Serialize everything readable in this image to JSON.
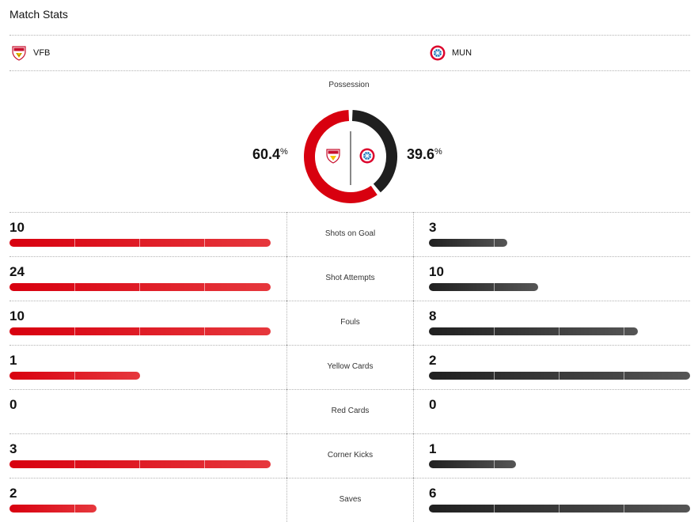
{
  "title": "Match Stats",
  "home": {
    "abbr": "VFB",
    "possession": "60.4",
    "color": "#d8000f"
  },
  "away": {
    "abbr": "MUN",
    "possession": "39.6",
    "color": "#1f1f1f"
  },
  "possession_label": "Possession",
  "percent_sign": "%",
  "stats": [
    {
      "label": "Shots on Goal",
      "home": "10",
      "away": "3",
      "home_frac": 1.0,
      "away_frac": 0.3
    },
    {
      "label": "Shot Attempts",
      "home": "24",
      "away": "10",
      "home_frac": 1.0,
      "away_frac": 0.417
    },
    {
      "label": "Fouls",
      "home": "10",
      "away": "8",
      "home_frac": 1.0,
      "away_frac": 0.8
    },
    {
      "label": "Yellow Cards",
      "home": "1",
      "away": "2",
      "home_frac": 0.5,
      "away_frac": 1.0
    },
    {
      "label": "Red Cards",
      "home": "0",
      "away": "0",
      "home_frac": 0,
      "away_frac": 0
    },
    {
      "label": "Corner Kicks",
      "home": "3",
      "away": "1",
      "home_frac": 1.0,
      "away_frac": 0.333
    },
    {
      "label": "Saves",
      "home": "2",
      "away": "6",
      "home_frac": 0.333,
      "away_frac": 1.0
    }
  ]
}
